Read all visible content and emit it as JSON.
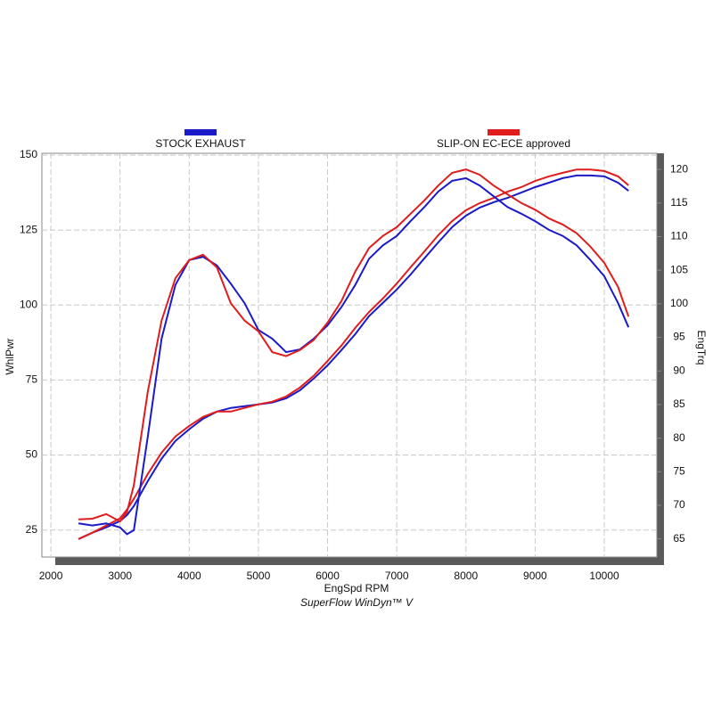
{
  "chart_data": {
    "type": "line",
    "x_label": "EngSpd  RPM",
    "y_label": "WhlPwr",
    "y2_label": "EngTrq",
    "footer": "SuperFlow WinDyn™ V",
    "x": [
      2400,
      2600,
      2800,
      3000,
      3100,
      3200,
      3400,
      3600,
      3800,
      4000,
      4200,
      4400,
      4600,
      4800,
      5000,
      5200,
      5400,
      5600,
      5800,
      6000,
      6200,
      6400,
      6600,
      6800,
      7000,
      7200,
      7400,
      7600,
      7800,
      8000,
      8200,
      8400,
      8600,
      8800,
      9000,
      9200,
      9400,
      9600,
      9800,
      10000,
      10200,
      10350
    ],
    "xlim": [
      1870,
      10760
    ],
    "xticks": [
      2000,
      3000,
      4000,
      5000,
      6000,
      7000,
      8000,
      9000,
      10000
    ],
    "ylim": [
      16,
      150.6
    ],
    "yticks": [
      25,
      50,
      75,
      100,
      125,
      150
    ],
    "y2lim": [
      62.3,
      122.4
    ],
    "y2ticks": [
      65,
      70,
      75,
      80,
      85,
      90,
      95,
      100,
      105,
      110,
      115,
      120
    ],
    "grid": true,
    "series": [
      {
        "name": "STOCK EXHAUST",
        "color": "#1a1ac8",
        "values": [
          22,
          24.1,
          25.9,
          28,
          30,
          33,
          41.3,
          48.8,
          54.7,
          58.6,
          62.1,
          64.5,
          65.7,
          66.3,
          66.9,
          67.5,
          68.9,
          71.6,
          75.5,
          79.9,
          85,
          90.3,
          96.3,
          100.7,
          105.2,
          110.2,
          115.6,
          120.9,
          126,
          129.8,
          132.5,
          134.3,
          135.7,
          137.5,
          139.3,
          140.8,
          142.3,
          143.2,
          143.2,
          142.9,
          140.8,
          138.1
        ]
      },
      {
        "name": "SLIP-ON EC-ECE approved",
        "color": "#e01c1c",
        "values": [
          22,
          24.1,
          26.5,
          28.9,
          31.8,
          35.4,
          43.7,
          50.8,
          56.2,
          59.7,
          62.7,
          64.5,
          64.5,
          65.7,
          66.9,
          67.8,
          69.5,
          72.5,
          76.4,
          81.4,
          86.5,
          92.4,
          97.7,
          102.2,
          107.2,
          112.6,
          117.9,
          123.3,
          128,
          131.6,
          134,
          135.7,
          137.8,
          139.3,
          141.4,
          142.9,
          144.1,
          145.2,
          145.2,
          144.7,
          142.9,
          139.9
        ]
      },
      {
        "color": "#1a1ac8",
        "axis": "y2",
        "values": [
          67.3,
          67,
          67.3,
          66.7,
          65.7,
          66.3,
          80.2,
          94.8,
          102.8,
          106.5,
          107,
          105.7,
          103,
          100.1,
          96.1,
          94.8,
          92.8,
          93.2,
          94.8,
          96.8,
          99.5,
          102.8,
          106.7,
          108.7,
          110.1,
          112.3,
          114.4,
          116.7,
          118.3,
          118.7,
          117.6,
          116,
          114.4,
          113.4,
          112.3,
          111,
          110.1,
          108.7,
          106.5,
          104.1,
          100.1,
          96.5
        ]
      },
      {
        "color": "#e01c1c",
        "axis": "y2",
        "values": [
          67.9,
          68,
          68.7,
          67.6,
          69,
          73,
          86.9,
          97.5,
          103.8,
          106.5,
          107.3,
          105.4,
          100.1,
          97.5,
          95.9,
          92.8,
          92.2,
          93.1,
          94.6,
          97.2,
          100.4,
          104.8,
          108.3,
          110.1,
          111.4,
          113.4,
          115.4,
          117.6,
          119.5,
          120,
          119.2,
          117.6,
          116.3,
          115,
          114,
          112.7,
          111.8,
          110.5,
          108.5,
          106.1,
          102.5,
          98.1
        ]
      }
    ]
  }
}
